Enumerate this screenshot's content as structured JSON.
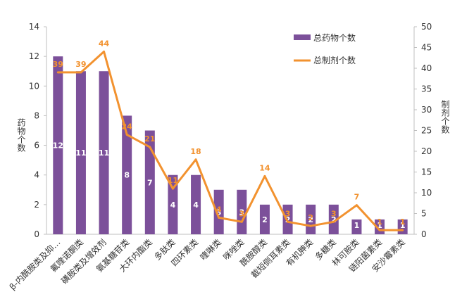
{
  "chart_data": {
    "type": "bar",
    "categories": [
      "β-内酰胺类及抑…",
      "氟喹诺酮类",
      "磺胺类及增效剂",
      "氨基糖苷类",
      "大环内酯类",
      "多肽类",
      "四环素类",
      "喹啉类",
      "咪唑类",
      "酰胺醇类",
      "截短侧耳素类",
      "有机胂类",
      "多糖类",
      "林可胺类",
      "链阳菌素类",
      "安沙霉素类"
    ],
    "series": [
      {
        "name": "总药物个数",
        "type": "bar",
        "axis": "left",
        "values": [
          12,
          11,
          11,
          8,
          7,
          4,
          4,
          3,
          3,
          2,
          2,
          2,
          2,
          1,
          1,
          1
        ]
      },
      {
        "name": "总制剂个数",
        "type": "line",
        "axis": "right",
        "values": [
          39,
          39,
          44,
          24,
          21,
          11,
          18,
          4,
          3,
          14,
          3,
          2,
          3,
          7,
          1,
          1
        ]
      }
    ],
    "ylabel": "药物个数",
    "y2label": "制剂个数",
    "ylim": [
      0,
      14
    ],
    "y2lim": [
      0,
      50
    ],
    "yticks": [
      0,
      2,
      4,
      6,
      8,
      10,
      12,
      14
    ],
    "y2ticks": [
      0,
      5,
      10,
      15,
      20,
      25,
      30,
      35,
      40,
      45,
      50
    ],
    "grid": false,
    "legend_position": "top-right",
    "colors": {
      "bar": "#7c509a",
      "line": "#f2922f",
      "axis": "#bfbfbf",
      "text": "#333333"
    }
  }
}
